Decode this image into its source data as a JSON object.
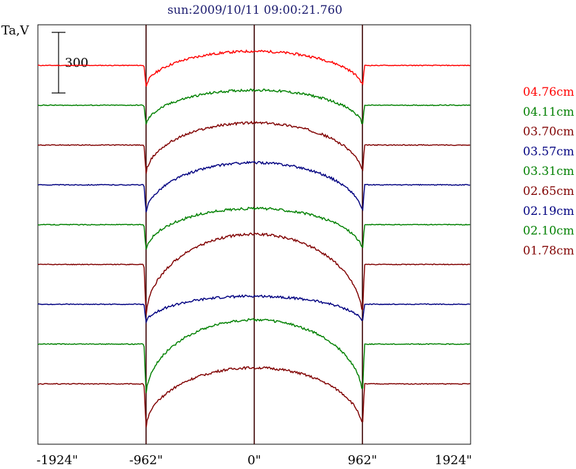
{
  "chart_data": {
    "type": "line",
    "title": "sun:2009/10/11 09:00:21.760",
    "ylabel": "Ta,V",
    "scale_bar_label": "300",
    "xlim": [
      -1924,
      1924
    ],
    "x_ticks": [
      {
        "value": -1924,
        "label": "-1924\""
      },
      {
        "value": -962,
        "label": "-962\""
      },
      {
        "value": 0,
        "label": "0\""
      },
      {
        "value": 962,
        "label": "962\""
      },
      {
        "value": 1924,
        "label": "1924\""
      }
    ],
    "vertical_markers": [
      -962,
      0,
      962
    ],
    "grid": false,
    "legend_position": "right",
    "series": [
      {
        "name": "04.76cm",
        "color": "#ff0000",
        "baseline": 0,
        "disk_drop": 110,
        "disk_peak": 70
      },
      {
        "name": "04.11cm",
        "color": "#008000",
        "baseline": 0,
        "disk_drop": 105,
        "disk_peak": 75
      },
      {
        "name": "03.70cm",
        "color": "#800000",
        "baseline": 0,
        "disk_drop": 150,
        "disk_peak": 110
      },
      {
        "name": "03.57cm",
        "color": "#000080",
        "baseline": 0,
        "disk_drop": 150,
        "disk_peak": 110
      },
      {
        "name": "03.31cm",
        "color": "#008000",
        "baseline": 0,
        "disk_drop": 135,
        "disk_peak": 80
      },
      {
        "name": "02.65cm",
        "color": "#800000",
        "baseline": 0,
        "disk_drop": 265,
        "disk_peak": 150
      },
      {
        "name": "02.19cm",
        "color": "#000080",
        "baseline": 0,
        "disk_drop": 95,
        "disk_peak": 40
      },
      {
        "name": "02.10cm",
        "color": "#008000",
        "baseline": 0,
        "disk_drop": 260,
        "disk_peak": 120
      },
      {
        "name": "01.78cm",
        "color": "#800000",
        "baseline": 0,
        "disk_drop": 225,
        "disk_peak": 80
      }
    ]
  }
}
